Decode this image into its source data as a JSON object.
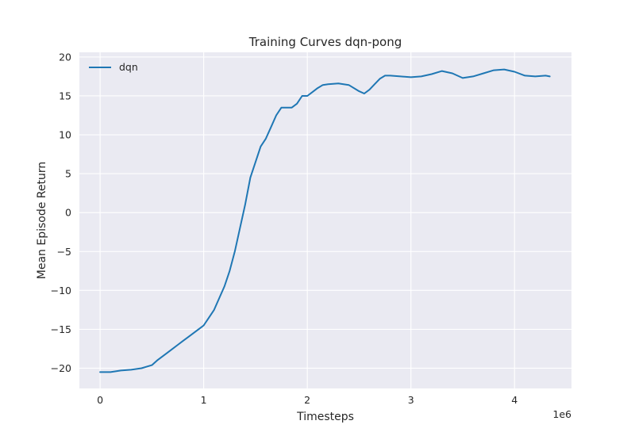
{
  "chart_data": {
    "type": "line",
    "title": "Training Curves dqn-pong",
    "xlabel": "Timesteps",
    "ylabel": "Mean Episode Return",
    "x_offset_label": "1e6",
    "xlim": [
      -0.2,
      4.55
    ],
    "ylim": [
      -22.6,
      20.6
    ],
    "x_ticks": [
      0,
      1,
      2,
      3,
      4
    ],
    "x_tick_labels": [
      "0",
      "1",
      "2",
      "3",
      "4"
    ],
    "y_ticks": [
      -20,
      -15,
      -10,
      -5,
      0,
      5,
      10,
      15,
      20
    ],
    "y_tick_labels": [
      "−20",
      "−15",
      "−10",
      "−5",
      "0",
      "5",
      "10",
      "15",
      "20"
    ],
    "grid": true,
    "legend_position": "top-left",
    "colors": {
      "background": "#eaeaf2",
      "grid": "#ffffff",
      "series": "#1f77b4"
    },
    "series": [
      {
        "name": "dqn",
        "x": [
          0.0,
          0.1,
          0.2,
          0.3,
          0.4,
          0.5,
          0.55,
          0.6,
          0.65,
          0.7,
          0.75,
          0.8,
          0.85,
          0.9,
          0.95,
          1.0,
          1.05,
          1.1,
          1.15,
          1.2,
          1.25,
          1.3,
          1.35,
          1.4,
          1.45,
          1.5,
          1.55,
          1.6,
          1.65,
          1.7,
          1.75,
          1.8,
          1.85,
          1.9,
          1.95,
          2.0,
          2.05,
          2.1,
          2.15,
          2.2,
          2.3,
          2.4,
          2.5,
          2.55,
          2.6,
          2.65,
          2.7,
          2.75,
          2.8,
          2.9,
          3.0,
          3.1,
          3.2,
          3.3,
          3.4,
          3.5,
          3.6,
          3.7,
          3.8,
          3.9,
          4.0,
          4.1,
          4.2,
          4.3,
          4.34
        ],
        "y": [
          -20.5,
          -20.5,
          -20.3,
          -20.2,
          -20.0,
          -19.6,
          -19.0,
          -18.5,
          -18.0,
          -17.5,
          -17.0,
          -16.5,
          -16.0,
          -15.5,
          -15.0,
          -14.5,
          -13.5,
          -12.5,
          -11.0,
          -9.5,
          -7.5,
          -5.0,
          -2.0,
          1.0,
          4.5,
          6.5,
          8.5,
          9.5,
          11.0,
          12.5,
          13.5,
          13.5,
          13.5,
          14.0,
          15.0,
          15.0,
          15.5,
          16.0,
          16.4,
          16.5,
          16.6,
          16.4,
          15.6,
          15.3,
          15.8,
          16.5,
          17.2,
          17.6,
          17.6,
          17.5,
          17.4,
          17.5,
          17.8,
          18.2,
          17.9,
          17.3,
          17.5,
          17.9,
          18.3,
          18.4,
          18.1,
          17.6,
          17.5,
          17.6,
          17.5
        ]
      }
    ]
  }
}
